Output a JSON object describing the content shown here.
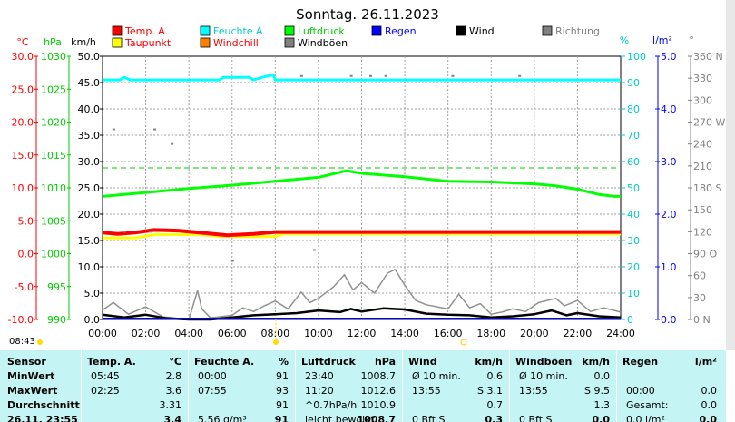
{
  "title": "Sonntag. 26.11.2023",
  "legend": [
    {
      "label": "Temp. A.",
      "color": "#ff0000",
      "text_color": "#ff0000"
    },
    {
      "label": "Feuchte A.",
      "color": "#00ffff",
      "text_color": "#00cccc"
    },
    {
      "label": "Luftdruck",
      "color": "#00ff00",
      "text_color": "#00cc00"
    },
    {
      "label": "Regen",
      "color": "#0000ff",
      "text_color": "#0000ff"
    },
    {
      "label": "Wind",
      "color": "#000000",
      "text_color": "#000000"
    },
    {
      "label": "Richtung",
      "color": "#808080",
      "text_color": "#808080"
    },
    {
      "label": "Taupunkt",
      "color": "#ffff00",
      "text_color": "#ff0000"
    },
    {
      "label": "Windchill",
      "color": "#ff8000",
      "text_color": "#ff0000"
    },
    {
      "label": "Windböen",
      "color": "#808080",
      "text_color": "#000000"
    }
  ],
  "axis_units": {
    "temp": "°C",
    "pressure": "hPa",
    "wind": "km/h",
    "humidity": "%",
    "rain": "l/m²",
    "direction": "°"
  },
  "axes": {
    "temp": [
      "30.0",
      "25.0",
      "20.0",
      "15.0",
      "10.0",
      "5.0",
      "0.0",
      "-5.0",
      "-10.0"
    ],
    "pressure": [
      "1030",
      "1025",
      "1020",
      "1015",
      "1010",
      "1005",
      "1000",
      "995",
      "990"
    ],
    "wind": [
      "50.0",
      "45.0",
      "40.0",
      "35.0",
      "30.0",
      "25.0",
      "20.0",
      "15.0",
      "10.0",
      "5.0",
      "0.0"
    ],
    "humidity": [
      "100",
      "90",
      "80",
      "70",
      "60",
      "50",
      "40",
      "30",
      "20",
      "10",
      "0"
    ],
    "rain": [
      "5.0",
      "4.0",
      "3.0",
      "2.0",
      "1.0",
      "0.0"
    ],
    "direction": [
      "360 N",
      "330",
      "300",
      "270 W",
      "240",
      "210",
      "180 S",
      "150",
      "120",
      "90 O",
      "60",
      "30",
      "0 N"
    ],
    "time": [
      "00:00",
      "02:00",
      "04:00",
      "06:00",
      "08:00",
      "10:00",
      "12:00",
      "14:00",
      "16:00",
      "18:00",
      "20:00",
      "22:00",
      "24:00"
    ]
  },
  "current_time": "08:43",
  "colors": {
    "plot_bg": "#ffffff",
    "grid": "#a0a0a0",
    "table_bg": "#c5f4f4",
    "temp_axis": "#ff0000",
    "pressure_axis": "#00cc00",
    "humidity_axis": "#00cccc",
    "rain_axis": "#0000ff"
  },
  "chart_data": {
    "type": "line",
    "title": "Sonntag. 26.11.2023",
    "x_range_hours": [
      0,
      24
    ],
    "series": [
      {
        "name": "Feuchte A.",
        "axis": "humidity",
        "points": [
          [
            0,
            91
          ],
          [
            0.8,
            91
          ],
          [
            1,
            92
          ],
          [
            1.3,
            91
          ],
          [
            5.4,
            91
          ],
          [
            5.6,
            92
          ],
          [
            6.8,
            92
          ],
          [
            7,
            91
          ],
          [
            7.4,
            92
          ],
          [
            7.9,
            93
          ],
          [
            8,
            91
          ],
          [
            24,
            91
          ]
        ]
      },
      {
        "name": "Luftdruck",
        "axis": "pressure",
        "points": [
          [
            0,
            1008.7
          ],
          [
            1,
            1009.0
          ],
          [
            2,
            1009.3
          ],
          [
            4,
            1009.9
          ],
          [
            6,
            1010.4
          ],
          [
            8,
            1011.0
          ],
          [
            10,
            1011.6
          ],
          [
            11.3,
            1012.6
          ],
          [
            12,
            1012.2
          ],
          [
            14,
            1011.7
          ],
          [
            16,
            1011.0
          ],
          [
            18,
            1010.9
          ],
          [
            20,
            1010.6
          ],
          [
            21,
            1010.3
          ],
          [
            22,
            1009.8
          ],
          [
            23,
            1009.0
          ],
          [
            23.7,
            1008.7
          ],
          [
            24,
            1008.7
          ]
        ]
      },
      {
        "name": "Temp. A.",
        "axis": "temp",
        "points": [
          [
            0,
            3.2
          ],
          [
            0.7,
            3.0
          ],
          [
            1.5,
            3.2
          ],
          [
            2.4,
            3.6
          ],
          [
            3.5,
            3.5
          ],
          [
            4.2,
            3.3
          ],
          [
            5.8,
            2.8
          ],
          [
            7,
            3.0
          ],
          [
            8,
            3.3
          ],
          [
            24,
            3.3
          ]
        ]
      },
      {
        "name": "Taupunkt",
        "axis": "temp",
        "points": [
          [
            0,
            2.4
          ],
          [
            1.5,
            2.4
          ],
          [
            2.4,
            2.9
          ],
          [
            4.5,
            2.9
          ],
          [
            5.5,
            2.6
          ],
          [
            8,
            2.6
          ],
          [
            8.4,
            3.0
          ],
          [
            24,
            3.0
          ]
        ]
      },
      {
        "name": "Wind",
        "axis": "wind",
        "points": [
          [
            0,
            0.9
          ],
          [
            1,
            0.4
          ],
          [
            2,
            0.9
          ],
          [
            3,
            0.2
          ],
          [
            4,
            0.0
          ],
          [
            5,
            0.0
          ],
          [
            6,
            0.4
          ],
          [
            7,
            0.8
          ],
          [
            8,
            1.0
          ],
          [
            9,
            1.2
          ],
          [
            10,
            1.7
          ],
          [
            11,
            1.4
          ],
          [
            11.5,
            2.0
          ],
          [
            12,
            1.5
          ],
          [
            13,
            2.1
          ],
          [
            14,
            1.9
          ],
          [
            15,
            1.1
          ],
          [
            16,
            0.9
          ],
          [
            17,
            0.8
          ],
          [
            18,
            0.4
          ],
          [
            19,
            0.6
          ],
          [
            20,
            1.0
          ],
          [
            20.8,
            1.7
          ],
          [
            21.5,
            0.8
          ],
          [
            22,
            1.2
          ],
          [
            23,
            0.6
          ],
          [
            24,
            0.4
          ]
        ]
      },
      {
        "name": "Windböen",
        "axis": "wind",
        "points": [
          [
            0,
            1.8
          ],
          [
            0.5,
            3.2
          ],
          [
            1.2,
            1.0
          ],
          [
            2,
            2.4
          ],
          [
            2.8,
            0.5
          ],
          [
            3.5,
            0.2
          ],
          [
            4,
            0.0
          ],
          [
            4.4,
            5.5
          ],
          [
            4.6,
            2.0
          ],
          [
            5,
            0.3
          ],
          [
            6,
            0.8
          ],
          [
            6.5,
            2.2
          ],
          [
            7,
            1.5
          ],
          [
            7.5,
            2.6
          ],
          [
            8,
            3.5
          ],
          [
            8.6,
            2.0
          ],
          [
            9.2,
            5.2
          ],
          [
            9.6,
            3.2
          ],
          [
            10,
            4.0
          ],
          [
            10.7,
            6.2
          ],
          [
            11.2,
            8.5
          ],
          [
            11.6,
            5.6
          ],
          [
            12,
            7.0
          ],
          [
            12.6,
            5.0
          ],
          [
            13.2,
            8.8
          ],
          [
            13.55,
            9.5
          ],
          [
            14,
            6.5
          ],
          [
            14.5,
            3.6
          ],
          [
            15,
            2.8
          ],
          [
            16,
            2.0
          ],
          [
            16.5,
            4.8
          ],
          [
            17,
            2.2
          ],
          [
            17.5,
            3.0
          ],
          [
            18,
            1.0
          ],
          [
            18.5,
            1.4
          ],
          [
            19,
            2.0
          ],
          [
            19.6,
            1.5
          ],
          [
            20.2,
            3.2
          ],
          [
            21,
            4.0
          ],
          [
            21.4,
            2.6
          ],
          [
            22,
            3.6
          ],
          [
            22.6,
            1.5
          ],
          [
            23.2,
            2.2
          ],
          [
            24,
            1.4
          ]
        ]
      }
    ],
    "direction_points_deg": [
      [
        9.2,
        333
      ],
      [
        11.5,
        333
      ],
      [
        12.4,
        333
      ],
      [
        13.1,
        333
      ],
      [
        16.2,
        333
      ],
      [
        19.3,
        333
      ],
      [
        0.5,
        260
      ],
      [
        2.4,
        260
      ],
      [
        3.2,
        240
      ],
      [
        1.0,
        120
      ],
      [
        2.2,
        120
      ],
      [
        9.8,
        95
      ],
      [
        6,
        80
      ]
    ]
  },
  "table": {
    "headers": {
      "sensor": "Sensor",
      "temp": "Temp. A.",
      "temp_unit": "°C",
      "hum": "Feuchte A.",
      "hum_unit": "%",
      "press": "Luftdruck",
      "press_unit": "hPa",
      "wind": "Wind",
      "wind_unit": "km/h",
      "gust": "Windböen",
      "gust_unit": "km/h",
      "rain": "Regen",
      "rain_unit": "l/m²"
    },
    "row_labels": [
      "MinWert",
      "MaxWert",
      "Durchschnitt",
      "26.11. 23:55"
    ],
    "rows": [
      {
        "temp_t": "05:45",
        "temp_v": "2.8",
        "hum_t": "00:00",
        "hum_v": "91",
        "press_t": "23:40",
        "press_v": "1008.7",
        "wind_t": "Ø 10 min.",
        "wind_v": "0.6",
        "gust_t": "Ø 10 min.",
        "gust_v": "0.0",
        "rain_t": "",
        "rain_v": ""
      },
      {
        "temp_t": "02:25",
        "temp_v": "3.6",
        "hum_t": "07:55",
        "hum_v": "93",
        "press_t": "11:20",
        "press_v": "1012.6",
        "wind_t": "13:55",
        "wind_v": "S 3.1",
        "gust_t": "13:55",
        "gust_v": "S 9.5",
        "rain_t": "00:00",
        "rain_v": "0.0"
      },
      {
        "temp_t": "",
        "temp_v": "3.31",
        "hum_t": "",
        "hum_v": "91",
        "press_t": "^0.7hPa/h",
        "press_v": "1010.9",
        "wind_t": "",
        "wind_v": "0.7",
        "gust_t": "",
        "gust_v": "1.3",
        "rain_t": "Gesamt:",
        "rain_v": "0.0"
      },
      {
        "temp_t": "",
        "temp_v": "3.4",
        "hum_t": "5.56 g/m³",
        "hum_v": "91",
        "press_t": "leicht bewölkt",
        "press_v": "1008.7",
        "wind_t": "0 Bft S",
        "wind_v": "0.3",
        "gust_t": "0 Bft S",
        "gust_v": "0.0",
        "rain_t": "0.0 l/m²",
        "rain_v": "0.0"
      }
    ]
  }
}
